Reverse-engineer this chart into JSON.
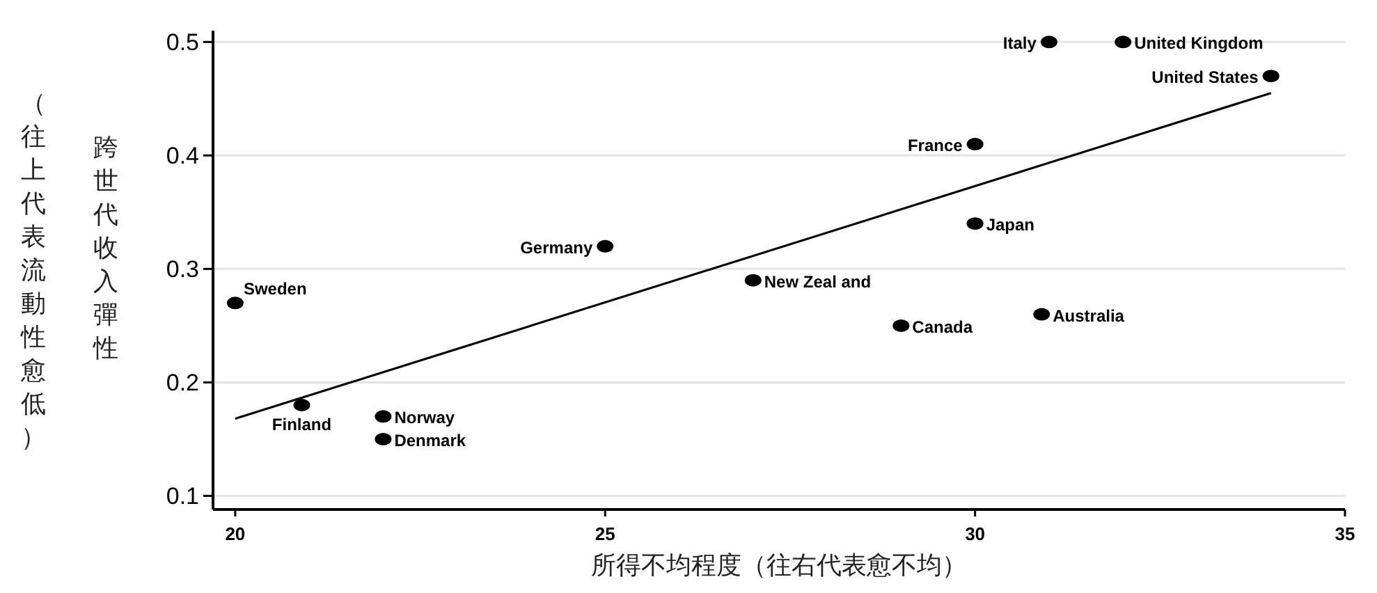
{
  "chart_data": {
    "type": "scatter",
    "xlabel": "所得不均程度（往右代表愈不均）",
    "ylabel": "跨世代收入彈性",
    "annotations": [
      "（往上代表流動性愈低）",
      {
        "text": "Sweden",
        "x": 20.0,
        "y": 0.27
      },
      {
        "text": "Finland",
        "x": 20.9,
        "y": 0.18
      },
      {
        "text": "Norway",
        "x": 22.0,
        "y": 0.17
      },
      {
        "text": "Denmark",
        "x": 22.0,
        "y": 0.15
      },
      {
        "text": "Germany",
        "x": 25.0,
        "y": 0.32
      },
      {
        "text": "New Zeal and",
        "x": 27.0,
        "y": 0.29
      },
      {
        "text": "Canada",
        "x": 29.0,
        "y": 0.25
      },
      {
        "text": "France",
        "x": 30.0,
        "y": 0.41
      },
      {
        "text": "Japan",
        "x": 30.0,
        "y": 0.34
      },
      {
        "text": "Australia",
        "x": 30.9,
        "y": 0.26
      },
      {
        "text": "Italy",
        "x": 31.0,
        "y": 0.5
      },
      {
        "text": "United Kingdom",
        "x": 32.0,
        "y": 0.5
      },
      {
        "text": "United States",
        "x": 34.0,
        "y": 0.47
      }
    ],
    "series": [
      {
        "color": "#000000",
        "marker": "circle",
        "x": [
          20.0,
          20.9,
          22.0,
          22.0,
          25.0,
          27.0,
          29.0,
          30.0,
          30.0,
          30.9,
          31.0,
          32.0,
          34.0
        ],
        "values": [
          0.27,
          0.18,
          0.17,
          0.15,
          0.32,
          0.29,
          0.25,
          0.41,
          0.34,
          0.26,
          0.5,
          0.5,
          0.47
        ]
      },
      {
        "type": "line",
        "color": "#000000",
        "x": [
          20,
          34
        ],
        "values": [
          0.168,
          0.455
        ]
      }
    ],
    "xlim": [
      19.7,
      35
    ],
    "xticks": [
      20,
      25,
      30,
      35
    ],
    "ylim": [
      0.088,
      0.51
    ],
    "yticks": [
      0.1,
      0.2,
      0.3,
      0.4,
      0.5
    ],
    "grid": "y"
  }
}
